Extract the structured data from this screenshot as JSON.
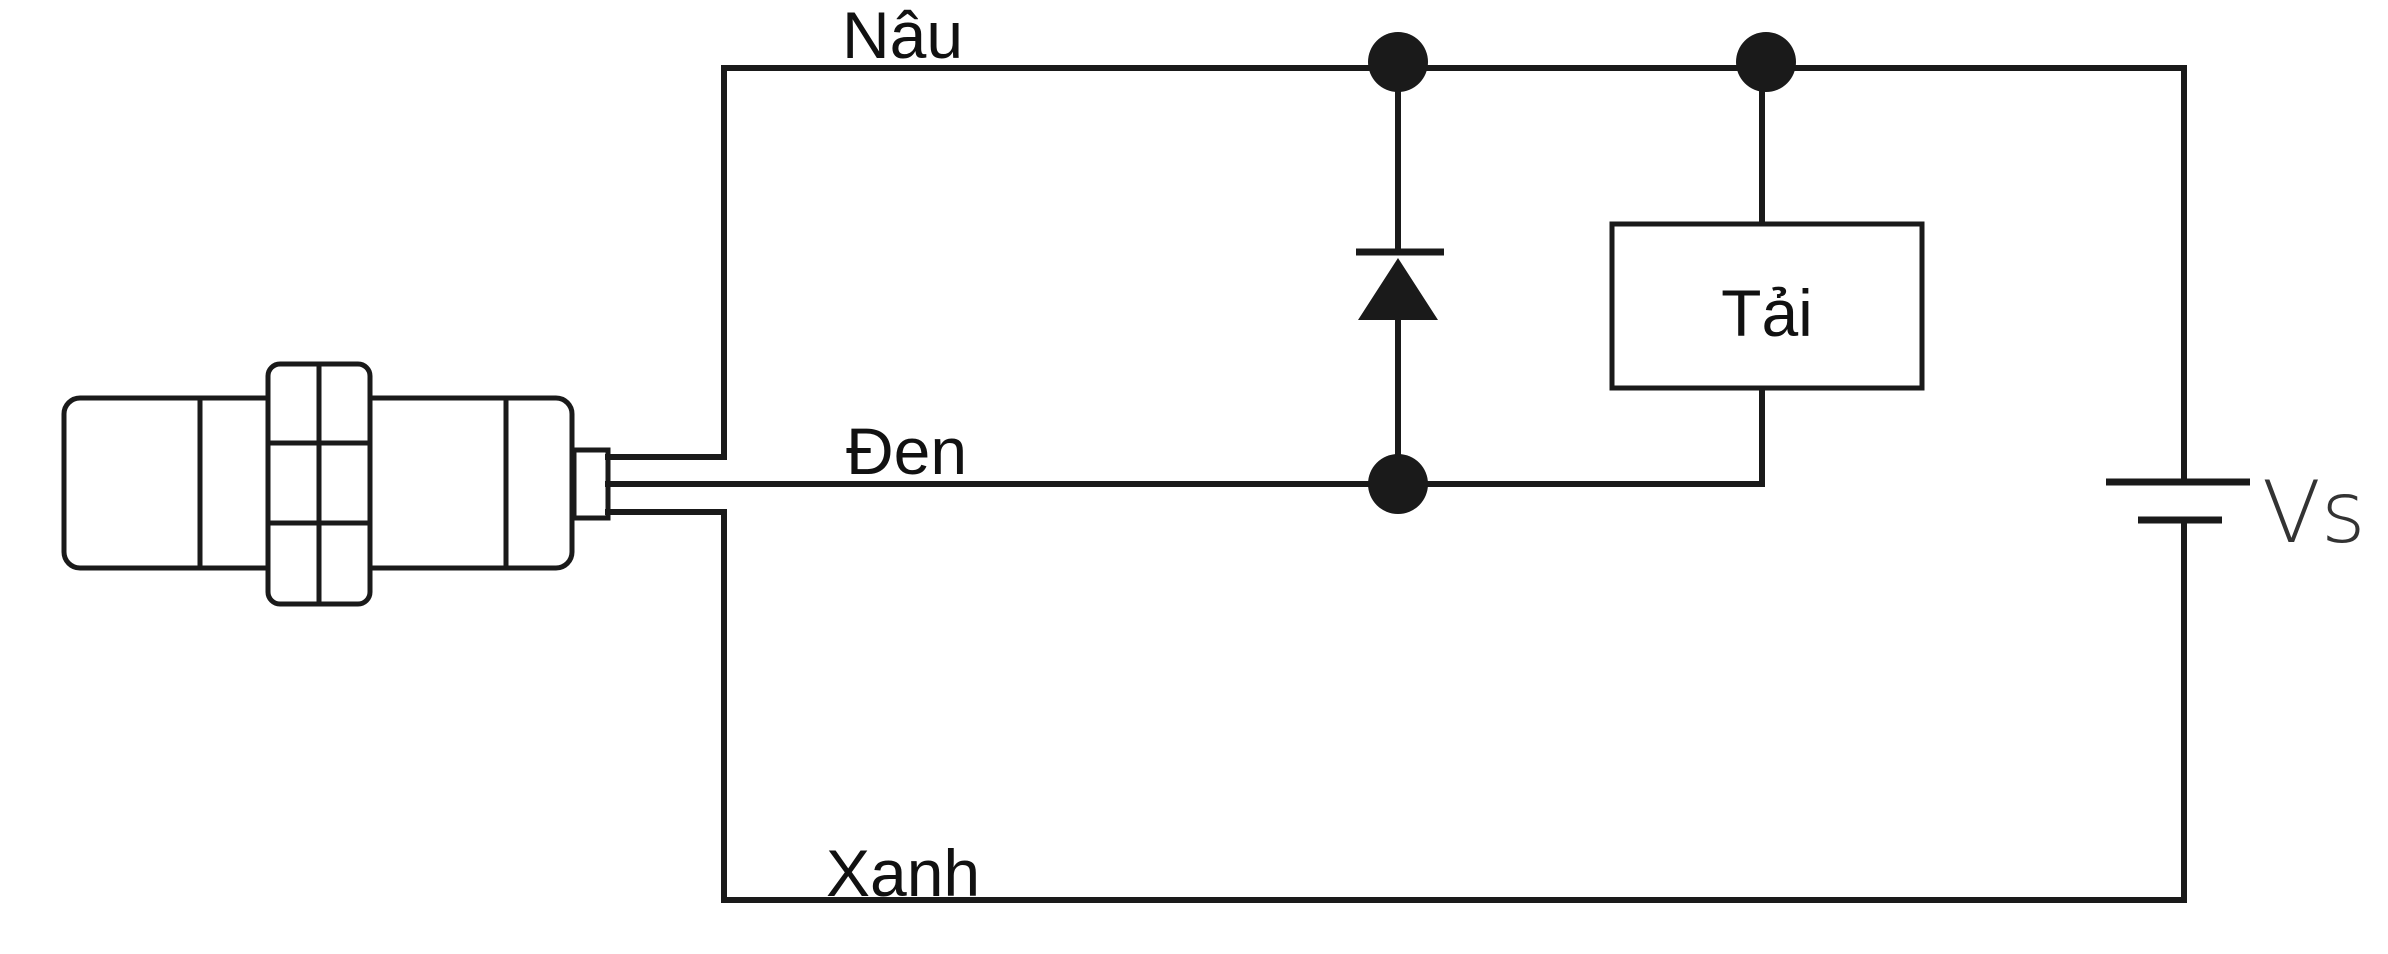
{
  "wires": {
    "brown_label": "Nâu",
    "black_label": "Đen",
    "blue_label": "Xanh"
  },
  "load": {
    "label": "Tải"
  },
  "supply": {
    "label": "Vs"
  }
}
